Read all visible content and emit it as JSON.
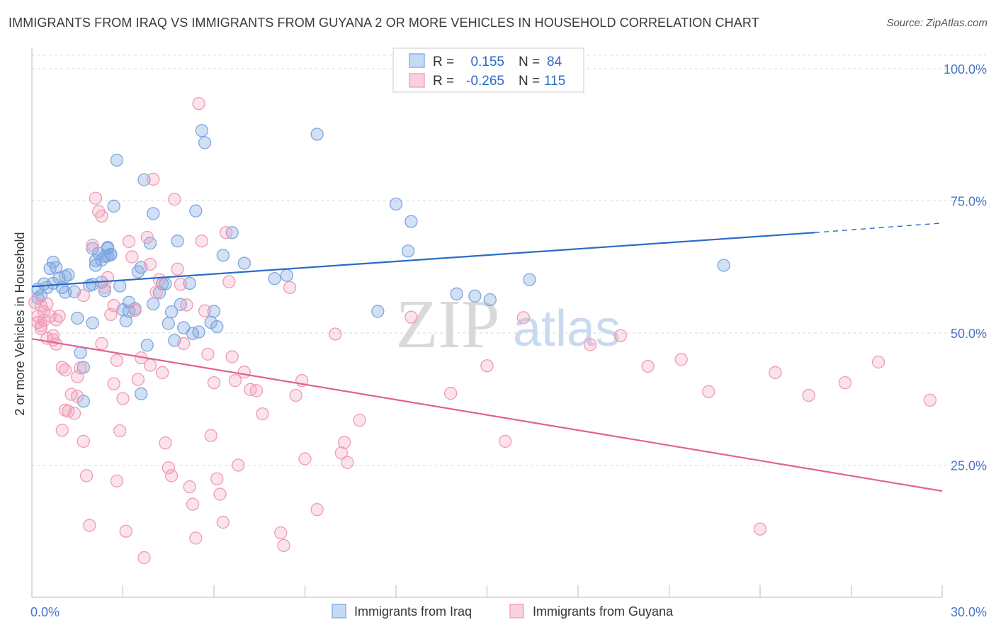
{
  "title": "IMMIGRANTS FROM IRAQ VS IMMIGRANTS FROM GUYANA 2 OR MORE VEHICLES IN HOUSEHOLD CORRELATION CHART",
  "source": "Source: ZipAtlas.com",
  "watermark": {
    "zip": "ZIP",
    "atlas": "atlas"
  },
  "chart_data": {
    "type": "scatter",
    "title": "IMMIGRANTS FROM IRAQ VS IMMIGRANTS FROM GUYANA 2 OR MORE VEHICLES IN HOUSEHOLD CORRELATION CHART",
    "xlabel": "",
    "ylabel": "2 or more Vehicles in Household",
    "xlim": [
      0,
      30
    ],
    "ylim": [
      0,
      105
    ],
    "x_tick_labels": [
      "0.0%",
      "30.0%"
    ],
    "y_ticks": [
      25,
      50,
      75,
      100
    ],
    "y_tick_labels": [
      "25.0%",
      "50.0%",
      "75.0%",
      "100.0%"
    ],
    "grid": true,
    "legend": [
      {
        "name": "Immigrants from Iraq",
        "color": "#7ea6e0",
        "r_label": "R =",
        "r_value": "0.155",
        "n_label": "N =",
        "n_value": "84"
      },
      {
        "name": "Immigrants from Guyana",
        "color": "#f09ab5",
        "r_label": "R =",
        "r_value": "-0.265",
        "n_label": "N =",
        "n_value": "115"
      }
    ],
    "series": [
      {
        "name": "Immigrants from Iraq",
        "color": "#7ea6e0",
        "line_color": "#2a6ac9",
        "trend": {
          "x0": 0,
          "y0": 58.8,
          "x1": 25.8,
          "y1": 69.0,
          "dash_x1": 30,
          "dash_y1": 70.8
        },
        "points": [
          [
            0.2,
            58.3
          ],
          [
            0.3,
            57.1
          ],
          [
            0.2,
            56.6
          ],
          [
            0.4,
            59.3
          ],
          [
            0.5,
            58.6
          ],
          [
            0.6,
            62.2
          ],
          [
            0.7,
            63.4
          ],
          [
            0.7,
            59.4
          ],
          [
            0.8,
            62.4
          ],
          [
            0.9,
            60.4
          ],
          [
            1.0,
            58.6
          ],
          [
            1.1,
            57.7
          ],
          [
            1.1,
            60.7
          ],
          [
            1.2,
            61.0
          ],
          [
            1.4,
            57.8
          ],
          [
            1.5,
            52.8
          ],
          [
            1.6,
            46.3
          ],
          [
            1.7,
            43.5
          ],
          [
            1.7,
            37.1
          ],
          [
            1.9,
            59.0
          ],
          [
            2.0,
            51.9
          ],
          [
            2.0,
            59.2
          ],
          [
            2.0,
            66.0
          ],
          [
            2.1,
            62.8
          ],
          [
            2.1,
            63.7
          ],
          [
            2.2,
            65.1
          ],
          [
            2.3,
            63.8
          ],
          [
            2.4,
            64.5
          ],
          [
            2.5,
            66.0
          ],
          [
            2.6,
            64.9
          ],
          [
            2.3,
            59.6
          ],
          [
            2.4,
            58.0
          ],
          [
            2.5,
            64.6
          ],
          [
            2.6,
            64.8
          ],
          [
            2.5,
            66.2
          ],
          [
            2.7,
            74.0
          ],
          [
            2.8,
            82.7
          ],
          [
            2.9,
            58.9
          ],
          [
            3.0,
            54.4
          ],
          [
            3.1,
            52.3
          ],
          [
            3.2,
            54.1
          ],
          [
            3.2,
            55.8
          ],
          [
            3.4,
            54.6
          ],
          [
            3.5,
            61.6
          ],
          [
            3.6,
            62.4
          ],
          [
            3.7,
            79.0
          ],
          [
            3.6,
            38.5
          ],
          [
            3.8,
            47.7
          ],
          [
            3.9,
            67.0
          ],
          [
            4.0,
            72.6
          ],
          [
            4.0,
            55.5
          ],
          [
            4.2,
            57.6
          ],
          [
            4.3,
            59.3
          ],
          [
            4.4,
            59.3
          ],
          [
            4.5,
            51.8
          ],
          [
            4.6,
            54.0
          ],
          [
            4.7,
            48.6
          ],
          [
            4.8,
            67.4
          ],
          [
            4.9,
            55.4
          ],
          [
            5.0,
            51.0
          ],
          [
            5.2,
            59.4
          ],
          [
            5.3,
            49.9
          ],
          [
            5.4,
            73.1
          ],
          [
            5.5,
            50.2
          ],
          [
            5.6,
            88.3
          ],
          [
            5.7,
            86.0
          ],
          [
            5.9,
            52.0
          ],
          [
            6.0,
            54.1
          ],
          [
            6.1,
            51.2
          ],
          [
            6.3,
            64.7
          ],
          [
            6.6,
            69.0
          ],
          [
            7.0,
            63.2
          ],
          [
            8.0,
            60.3
          ],
          [
            8.4,
            60.9
          ],
          [
            9.4,
            87.6
          ],
          [
            11.4,
            54.1
          ],
          [
            12.0,
            74.4
          ],
          [
            12.4,
            65.5
          ],
          [
            12.5,
            71.1
          ],
          [
            14.0,
            57.4
          ],
          [
            14.6,
            57.0
          ],
          [
            15.1,
            56.3
          ],
          [
            16.4,
            60.1
          ],
          [
            22.8,
            62.8
          ]
        ]
      },
      {
        "name": "Immigrants from Guyana",
        "color": "#f09ab5",
        "line_color": "#e0628f",
        "trend": {
          "x0": 0,
          "y0": 48.9,
          "x1": 30,
          "y1": 20.1
        },
        "points": [
          [
            0.1,
            55.8
          ],
          [
            0.2,
            52.0
          ],
          [
            0.2,
            53.2
          ],
          [
            0.3,
            51.4
          ],
          [
            0.3,
            55.1
          ],
          [
            0.3,
            50.8
          ],
          [
            0.4,
            54.0
          ],
          [
            0.4,
            52.4
          ],
          [
            0.5,
            55.5
          ],
          [
            0.5,
            49.0
          ],
          [
            0.6,
            53.2
          ],
          [
            0.7,
            48.7
          ],
          [
            0.7,
            49.5
          ],
          [
            0.8,
            47.9
          ],
          [
            0.8,
            52.5
          ],
          [
            0.9,
            53.2
          ],
          [
            1.0,
            43.5
          ],
          [
            1.1,
            43.0
          ],
          [
            1.0,
            31.6
          ],
          [
            1.1,
            35.4
          ],
          [
            1.2,
            35.2
          ],
          [
            1.3,
            38.4
          ],
          [
            1.4,
            34.8
          ],
          [
            1.5,
            38.0
          ],
          [
            1.6,
            43.4
          ],
          [
            1.7,
            57.1
          ],
          [
            1.7,
            29.5
          ],
          [
            1.8,
            23.0
          ],
          [
            1.9,
            13.6
          ],
          [
            2.0,
            66.6
          ],
          [
            2.1,
            75.5
          ],
          [
            2.2,
            73.0
          ],
          [
            2.3,
            72.1
          ],
          [
            2.3,
            48.0
          ],
          [
            2.4,
            58.6
          ],
          [
            2.5,
            60.5
          ],
          [
            2.6,
            53.5
          ],
          [
            2.7,
            55.2
          ],
          [
            2.8,
            44.8
          ],
          [
            2.8,
            22.0
          ],
          [
            2.9,
            31.5
          ],
          [
            3.0,
            37.6
          ],
          [
            3.1,
            12.5
          ],
          [
            3.2,
            67.3
          ],
          [
            3.3,
            64.4
          ],
          [
            3.4,
            54.3
          ],
          [
            3.5,
            41.2
          ],
          [
            3.6,
            45.3
          ],
          [
            3.7,
            7.5
          ],
          [
            3.8,
            68.1
          ],
          [
            3.9,
            63.0
          ],
          [
            4.0,
            79.1
          ],
          [
            4.1,
            57.7
          ],
          [
            4.2,
            60.1
          ],
          [
            4.3,
            42.5
          ],
          [
            4.4,
            29.2
          ],
          [
            4.5,
            24.5
          ],
          [
            4.6,
            23.0
          ],
          [
            4.7,
            75.3
          ],
          [
            4.8,
            62.1
          ],
          [
            4.9,
            59.2
          ],
          [
            5.0,
            48.0
          ],
          [
            5.1,
            55.3
          ],
          [
            5.2,
            20.9
          ],
          [
            5.3,
            17.6
          ],
          [
            5.4,
            11.2
          ],
          [
            5.5,
            93.4
          ],
          [
            5.6,
            67.4
          ],
          [
            5.7,
            54.2
          ],
          [
            5.8,
            46.0
          ],
          [
            5.9,
            30.6
          ],
          [
            6.0,
            40.6
          ],
          [
            6.1,
            22.4
          ],
          [
            6.2,
            19.5
          ],
          [
            6.3,
            14.2
          ],
          [
            6.4,
            69.0
          ],
          [
            6.5,
            59.7
          ],
          [
            6.6,
            45.5
          ],
          [
            6.7,
            41.0
          ],
          [
            6.8,
            25.0
          ],
          [
            7.0,
            42.6
          ],
          [
            7.2,
            39.3
          ],
          [
            7.4,
            39.1
          ],
          [
            7.6,
            34.7
          ],
          [
            8.2,
            12.2
          ],
          [
            8.3,
            9.8
          ],
          [
            8.5,
            58.6
          ],
          [
            8.7,
            38.2
          ],
          [
            8.9,
            41.0
          ],
          [
            9.0,
            26.2
          ],
          [
            9.4,
            16.6
          ],
          [
            10.0,
            49.8
          ],
          [
            10.2,
            27.3
          ],
          [
            10.3,
            29.3
          ],
          [
            10.4,
            25.5
          ],
          [
            10.8,
            33.5
          ],
          [
            12.5,
            53.0
          ],
          [
            13.8,
            38.6
          ],
          [
            15.0,
            43.8
          ],
          [
            15.6,
            29.5
          ],
          [
            16.2,
            52.9
          ],
          [
            18.4,
            47.8
          ],
          [
            19.4,
            49.5
          ],
          [
            20.3,
            43.7
          ],
          [
            21.4,
            45.0
          ],
          [
            22.3,
            38.9
          ],
          [
            24.0,
            12.9
          ],
          [
            24.5,
            42.5
          ],
          [
            25.6,
            38.2
          ],
          [
            26.8,
            40.6
          ],
          [
            27.9,
            44.5
          ],
          [
            29.6,
            37.3
          ],
          [
            1.5,
            41.7
          ],
          [
            2.7,
            40.4
          ],
          [
            3.9,
            43.9
          ]
        ]
      }
    ]
  }
}
